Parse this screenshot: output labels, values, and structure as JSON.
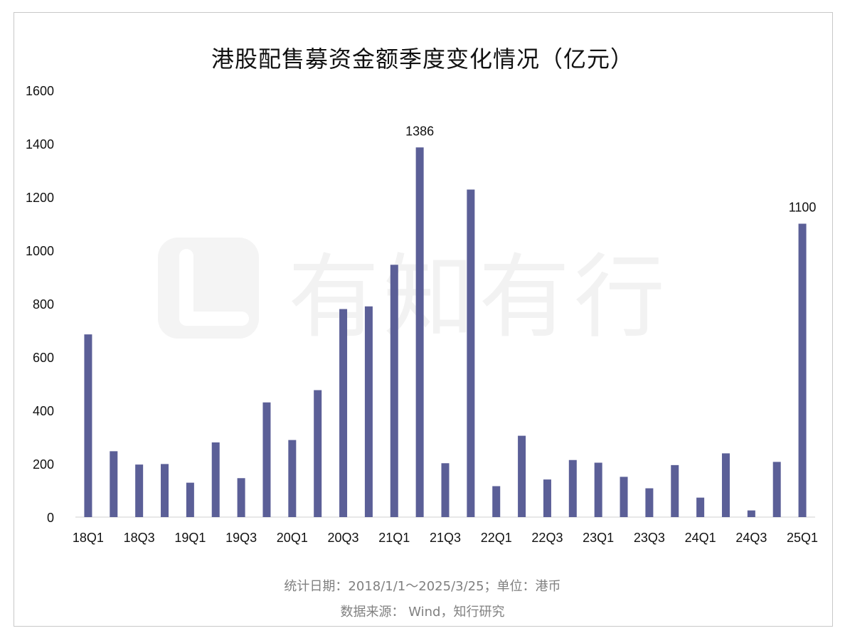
{
  "chart_data": {
    "type": "bar",
    "title": "港股配售募资金额季度变化情况（亿元）",
    "categories": [
      "18Q1",
      "18Q2",
      "18Q3",
      "18Q4",
      "19Q1",
      "19Q2",
      "19Q3",
      "19Q4",
      "20Q1",
      "20Q2",
      "20Q3",
      "20Q4",
      "21Q1",
      "21Q2",
      "21Q3",
      "21Q4",
      "22Q1",
      "22Q2",
      "22Q3",
      "22Q4",
      "23Q1",
      "23Q2",
      "23Q3",
      "23Q4",
      "24Q1",
      "24Q2",
      "24Q3",
      "24Q4",
      "25Q1"
    ],
    "shown_tick_labels": [
      "18Q1",
      "18Q3",
      "19Q1",
      "19Q3",
      "20Q1",
      "20Q3",
      "21Q1",
      "21Q3",
      "22Q1",
      "22Q3",
      "23Q1",
      "23Q3",
      "24Q1",
      "24Q3",
      "25Q1"
    ],
    "values": [
      685,
      247,
      197,
      199,
      129,
      280,
      146,
      430,
      289,
      476,
      780,
      790,
      946,
      1386,
      202,
      1228,
      116,
      305,
      141,
      214,
      204,
      151,
      108,
      195,
      73,
      239,
      25,
      207,
      1100
    ],
    "data_labels": [
      {
        "category": "21Q2",
        "text": "1386"
      },
      {
        "category": "25Q1",
        "text": "1100"
      }
    ],
    "ylim": [
      0,
      1600
    ],
    "yticks": [
      0,
      200,
      400,
      600,
      800,
      1000,
      1200,
      1400,
      1600
    ],
    "xlabel": "",
    "ylabel": "",
    "grid": false,
    "legend": "none",
    "bar_color": "#5b5f97"
  },
  "watermark": "有知有行",
  "footer": {
    "line1": "统计日期：2018/1/1～2025/3/25；单位：港币",
    "line2": "数据来源： Wind，知行研究"
  }
}
